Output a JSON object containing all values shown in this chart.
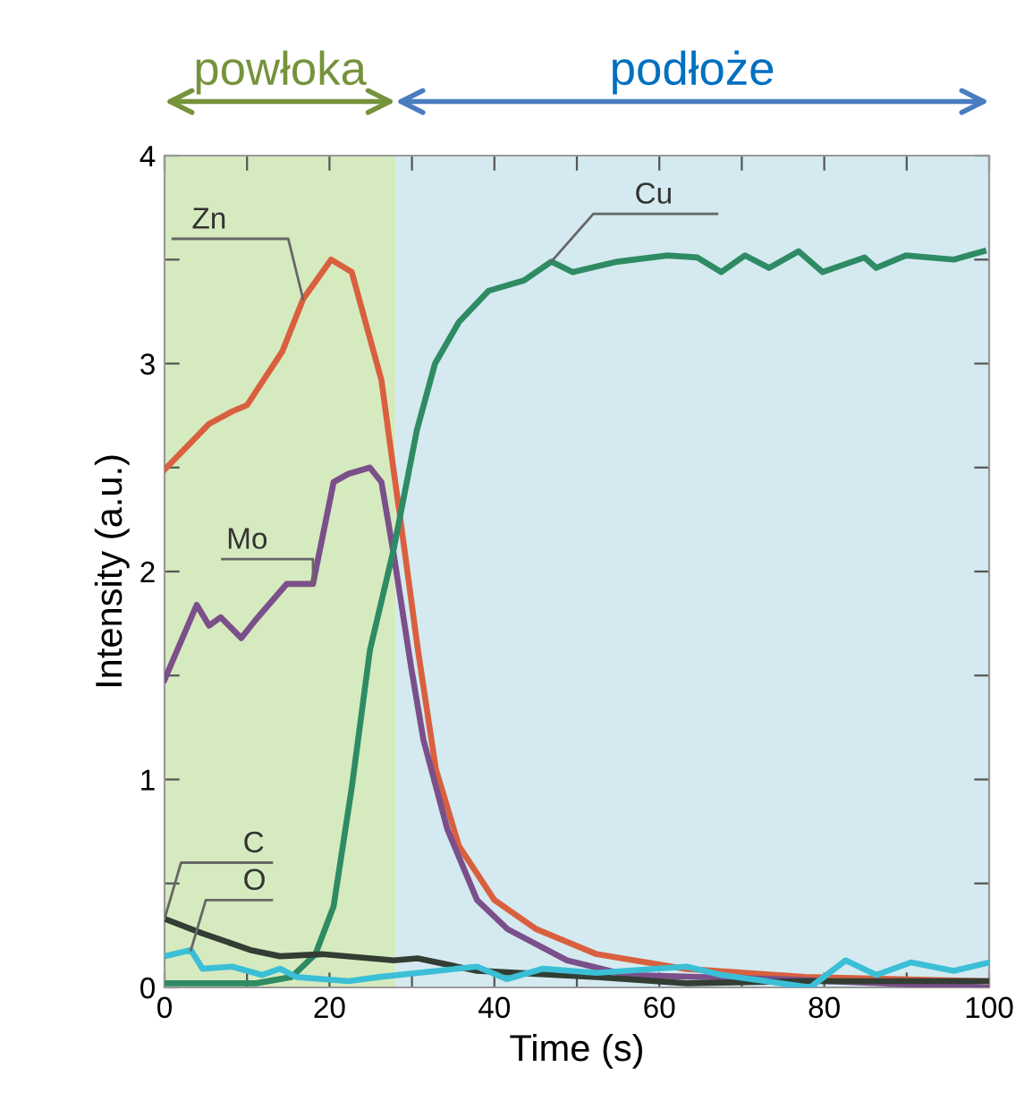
{
  "chart_data": {
    "type": "line",
    "xlabel": "Time (s)",
    "ylabel": "Intensity (a.u.)",
    "xlim": [
      0,
      100
    ],
    "ylim": [
      0,
      4
    ],
    "xticks": [
      0,
      {
        "value": 10,
        "label": null
      },
      20,
      {
        "value": 30,
        "label": null
      },
      40,
      {
        "value": 50,
        "label": null
      },
      60,
      {
        "value": 70,
        "label": null
      },
      80,
      {
        "value": 90,
        "label": null
      },
      100
    ],
    "yticks": [
      0,
      {
        "value": 0.5,
        "label": null
      },
      1,
      {
        "value": 1.5,
        "label": null
      },
      2,
      {
        "value": 2.5,
        "label": null
      },
      3,
      {
        "value": 3.5,
        "label": null
      },
      4
    ],
    "grid": false,
    "legend": false,
    "line_style": "solid",
    "marker": "none",
    "bands": [
      {
        "axis": "x",
        "from": 0,
        "to": 28,
        "label": "powłoka",
        "color": "#d6eabf"
      },
      {
        "axis": "x",
        "from": 28,
        "to": 100,
        "label": "podłoże",
        "color": "#d4eaf0"
      }
    ],
    "series": [
      {
        "name": "Zn",
        "color": "#d9603f",
        "x": [
          0,
          5.4,
          8.2,
          10,
          14.3,
          16.8,
          20.2,
          22.7,
          26.3,
          27.8,
          28.5,
          30.7,
          32.9,
          35.7,
          40,
          45.1,
          52.4,
          63,
          77.7,
          100
        ],
        "values": [
          2.49,
          2.71,
          2.77,
          2.8,
          3.06,
          3.31,
          3.5,
          3.44,
          2.92,
          2.48,
          2.28,
          1.63,
          1.05,
          0.68,
          0.42,
          0.28,
          0.16,
          0.09,
          0.05,
          0.03
        ]
      },
      {
        "name": "Mo",
        "color": "#7b4f8a",
        "x": [
          0,
          3.9,
          5.4,
          6.8,
          9.3,
          11.1,
          14.8,
          18,
          20.5,
          22.3,
          24.9,
          26.3,
          27.8,
          29.9,
          31.4,
          34.3,
          37.9,
          41.6,
          48.8,
          56,
          74,
          100
        ],
        "values": [
          1.48,
          1.84,
          1.74,
          1.78,
          1.68,
          1.77,
          1.94,
          1.94,
          2.43,
          2.47,
          2.5,
          2.43,
          2.08,
          1.54,
          1.19,
          0.76,
          0.42,
          0.28,
          0.13,
          0.06,
          0.04,
          0.0
        ]
      },
      {
        "name": "Cu",
        "color": "#2e8b64",
        "x": [
          0,
          11.1,
          15.4,
          18.3,
          20.5,
          22.7,
          24.9,
          27.8,
          30.6,
          32.8,
          35.7,
          39.3,
          43.6,
          46.9,
          49.5,
          54.9,
          61,
          64.6,
          67.5,
          70.4,
          73.3,
          76.9,
          79.8,
          83.4,
          84.9,
          86.3,
          89.9,
          95.7,
          99.3
        ],
        "values": [
          0.02,
          0.02,
          0.05,
          0.16,
          0.39,
          0.96,
          1.62,
          2.11,
          2.68,
          3.0,
          3.2,
          3.35,
          3.4,
          3.49,
          3.44,
          3.49,
          3.52,
          3.51,
          3.44,
          3.52,
          3.46,
          3.54,
          3.44,
          3.49,
          3.51,
          3.46,
          3.52,
          3.5,
          3.54
        ]
      },
      {
        "name": "C",
        "color": "#333d33",
        "x": [
          0,
          4.6,
          10.4,
          14,
          19.1,
          27.8,
          30.7,
          37.9,
          52.4,
          63.3,
          77.7,
          100
        ],
        "values": [
          0.33,
          0.26,
          0.18,
          0.15,
          0.16,
          0.13,
          0.14,
          0.08,
          0.05,
          0.02,
          0.03,
          0.03
        ]
      },
      {
        "name": "O",
        "color": "#3bbfd6",
        "x": [
          0,
          3.2,
          4.6,
          8.2,
          11.8,
          14,
          16,
          22.3,
          26,
          37.9,
          41.5,
          45.9,
          52.4,
          63.3,
          67.5,
          78.3,
          82.6,
          86.3,
          90.5,
          95.7,
          100
        ],
        "values": [
          0.15,
          0.18,
          0.09,
          0.1,
          0.06,
          0.09,
          0.05,
          0.03,
          0.05,
          0.1,
          0.04,
          0.09,
          0.07,
          0.1,
          0.06,
          0.0,
          0.13,
          0.06,
          0.12,
          0.08,
          0.12
        ]
      }
    ]
  }
}
